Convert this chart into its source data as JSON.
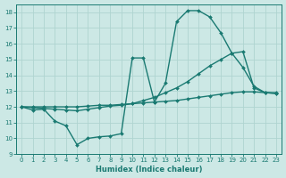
{
  "xlabel": "Humidex (Indice chaleur)",
  "background_color": "#cce8e5",
  "grid_color": "#afd4d0",
  "line_color": "#1a7a72",
  "xlim": [
    -0.5,
    23.5
  ],
  "ylim": [
    9,
    18.5
  ],
  "yticks": [
    9,
    10,
    11,
    12,
    13,
    14,
    15,
    16,
    17,
    18
  ],
  "xticks": [
    0,
    1,
    2,
    3,
    4,
    5,
    6,
    7,
    8,
    9,
    10,
    11,
    12,
    13,
    14,
    15,
    16,
    17,
    18,
    19,
    20,
    21,
    22,
    23
  ],
  "series": [
    {
      "x": [
        0,
        1,
        2,
        3,
        4,
        5,
        6,
        7,
        8,
        9,
        10,
        11,
        12,
        13,
        14,
        15,
        16,
        17,
        18,
        19,
        20,
        21,
        22,
        23
      ],
      "y": [
        12.0,
        11.8,
        11.85,
        11.1,
        10.8,
        9.6,
        10.0,
        10.1,
        10.15,
        10.3,
        15.1,
        15.1,
        12.3,
        13.5,
        17.4,
        18.1,
        18.1,
        17.7,
        16.7,
        15.4,
        14.5,
        13.3,
        12.9,
        12.9
      ]
    },
    {
      "x": [
        0,
        1,
        2,
        3,
        4,
        5,
        6,
        7,
        8,
        9,
        10,
        11,
        12,
        13,
        14,
        15,
        16,
        17,
        18,
        19,
        20,
        21,
        22,
        23
      ],
      "y": [
        12.0,
        11.95,
        11.9,
        11.85,
        11.8,
        11.75,
        11.85,
        11.95,
        12.05,
        12.1,
        12.2,
        12.4,
        12.6,
        12.9,
        13.2,
        13.6,
        14.1,
        14.6,
        15.0,
        15.4,
        15.5,
        13.2,
        12.9,
        12.85
      ]
    },
    {
      "x": [
        0,
        1,
        2,
        3,
        4,
        5,
        6,
        7,
        8,
        9,
        10,
        11,
        12,
        13,
        14,
        15,
        16,
        17,
        18,
        19,
        20,
        21,
        22,
        23
      ],
      "y": [
        12.0,
        12.0,
        12.0,
        12.0,
        12.0,
        12.0,
        12.05,
        12.1,
        12.1,
        12.15,
        12.2,
        12.25,
        12.3,
        12.35,
        12.4,
        12.5,
        12.6,
        12.7,
        12.8,
        12.9,
        12.95,
        12.95,
        12.9,
        12.85
      ]
    }
  ]
}
